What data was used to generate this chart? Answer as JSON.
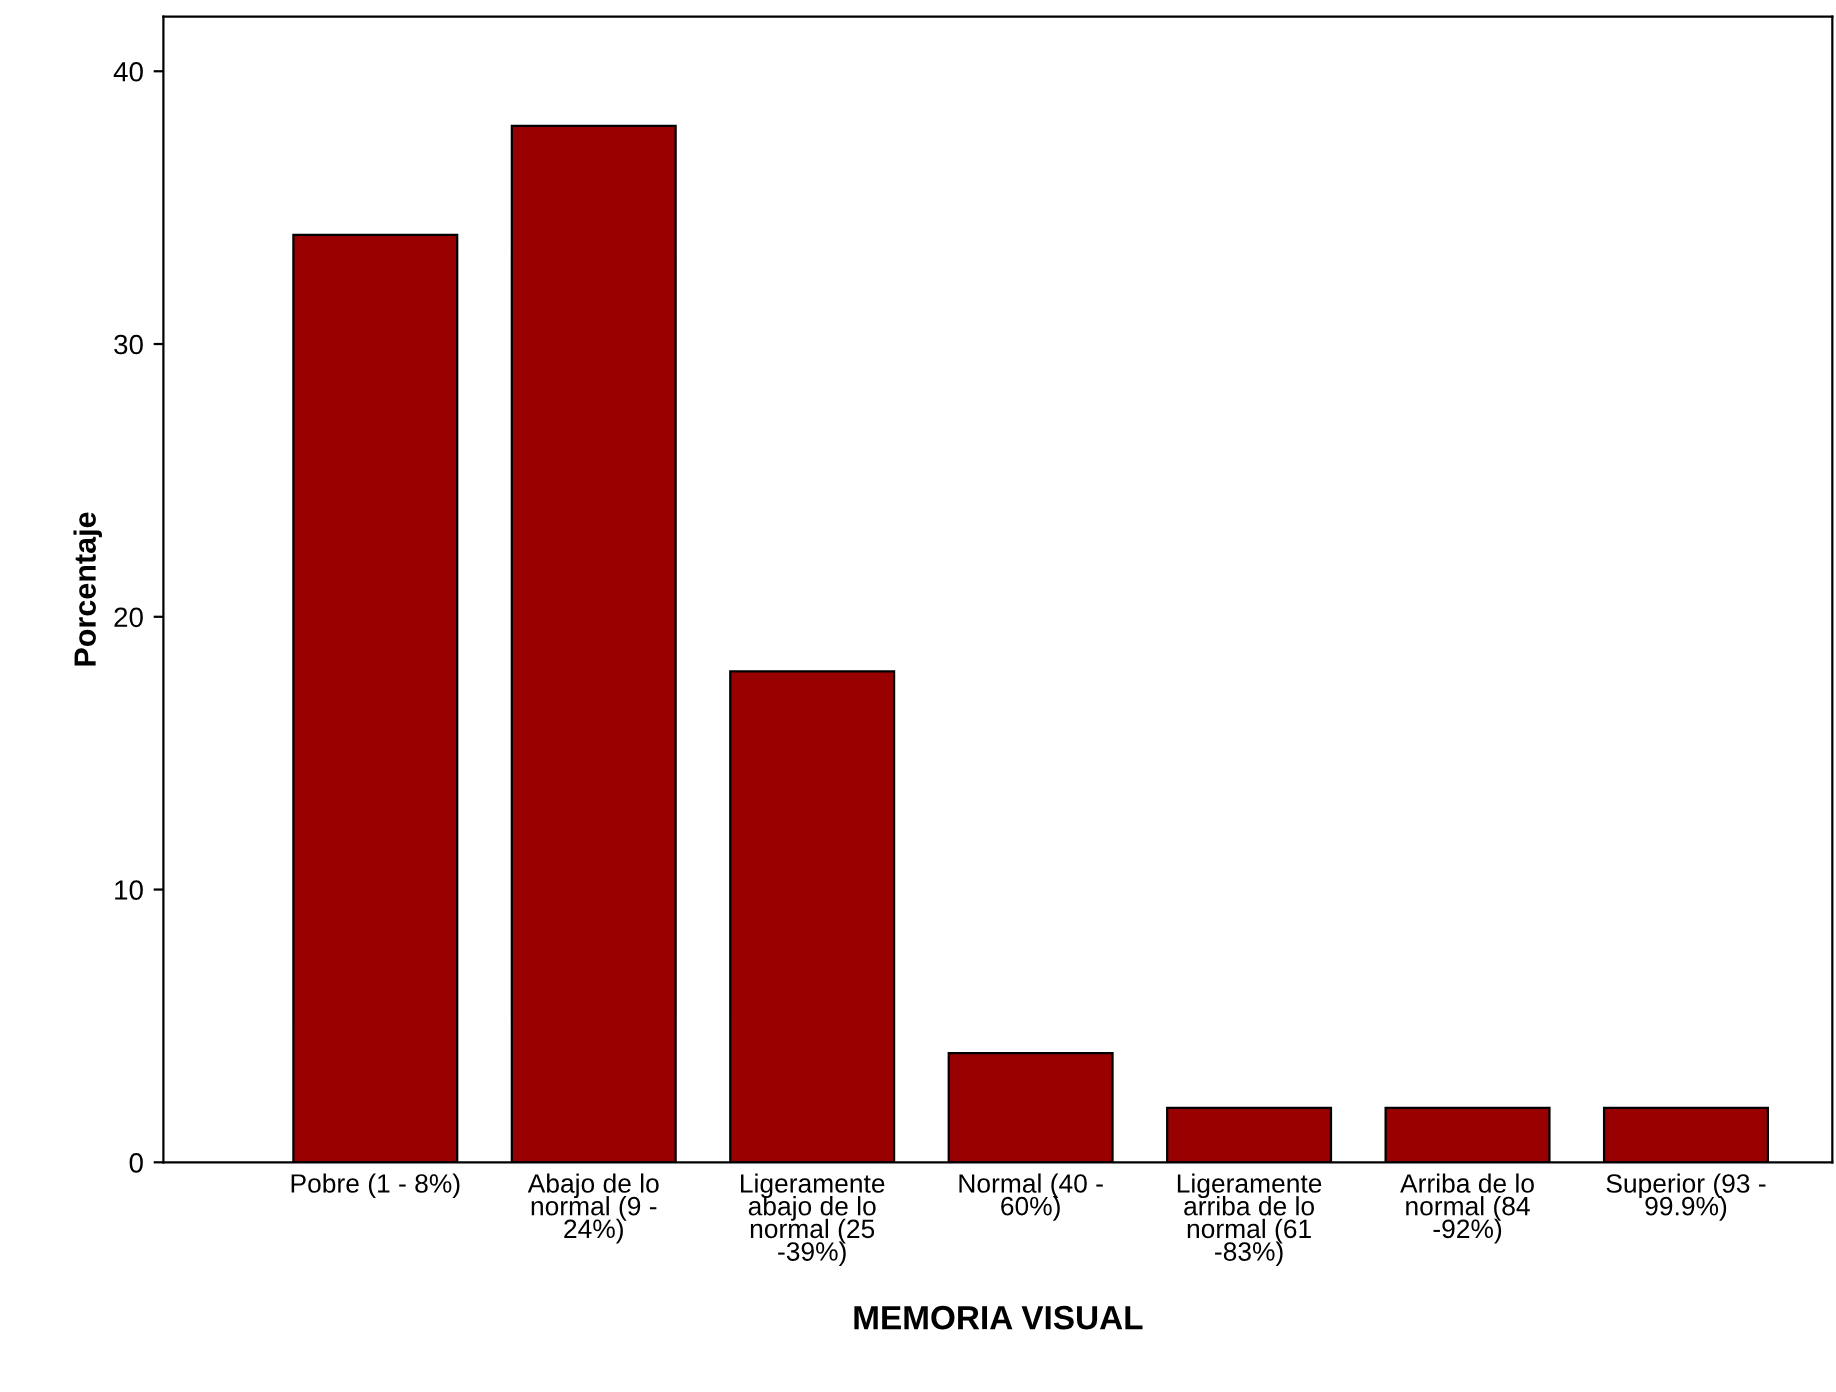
{
  "chart_data": {
    "type": "bar",
    "xlabel": "MEMORIA VISUAL",
    "ylabel": "Porcentaje",
    "categories": [
      "Pobre (1 - 8%)",
      "Abajo de lo\nnormal (9 -\n24%)",
      "Ligeramente\nabajo de lo\nnormal (25\n-39%)",
      "Normal (40 -\n60%)",
      "Ligeramente\narriba de lo\nnormal (61\n-83%)",
      "Arriba de lo\nnormal (84\n-92%)",
      "Superior (93 -\n99.9%)"
    ],
    "values": [
      34,
      38,
      18,
      4,
      2,
      2,
      2
    ],
    "color": "#990000",
    "ylim": [
      0,
      42
    ],
    "yticks": [
      0,
      10,
      20,
      30,
      40
    ],
    "grid": false,
    "legend": false
  }
}
